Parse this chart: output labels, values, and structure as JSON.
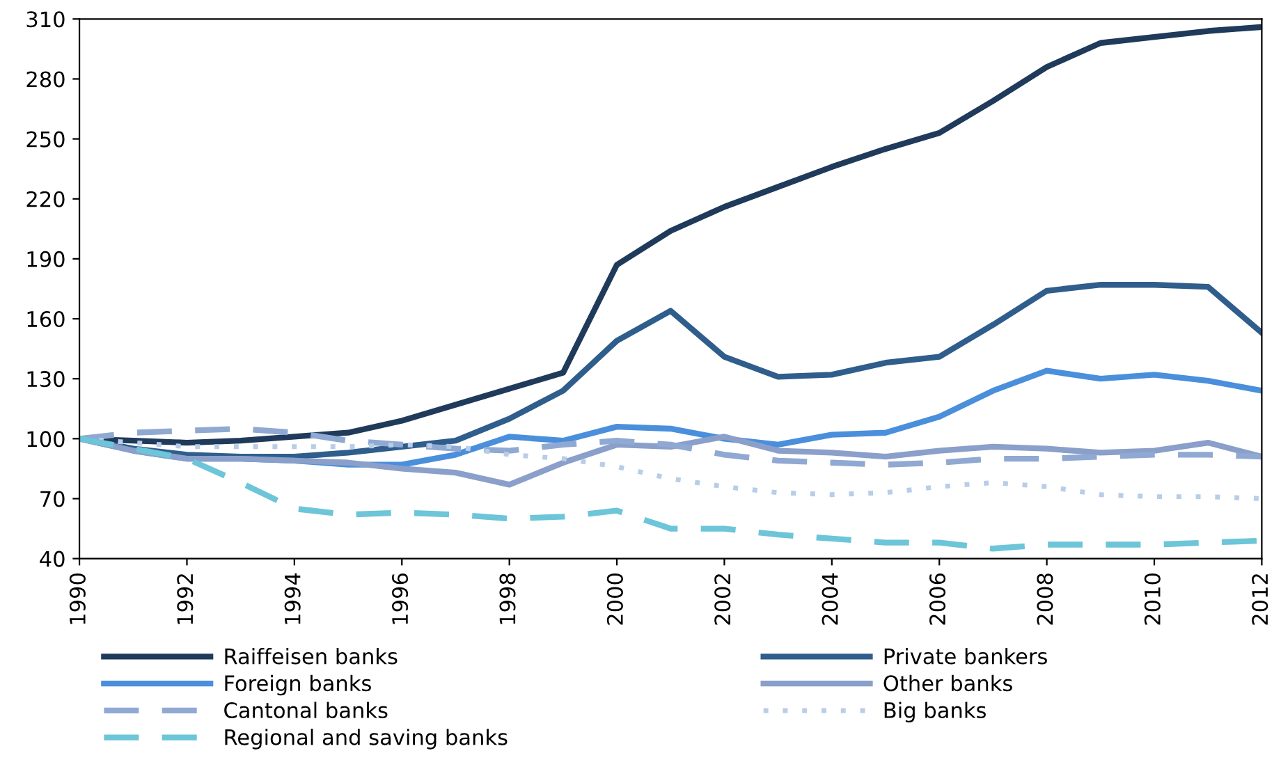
{
  "chart_data": {
    "type": "line",
    "x": [
      1990,
      1991,
      1992,
      1993,
      1994,
      1995,
      1996,
      1997,
      1998,
      1999,
      2000,
      2001,
      2002,
      2003,
      2004,
      2005,
      2006,
      2007,
      2008,
      2009,
      2010,
      2011,
      2012
    ],
    "xlim": [
      1990,
      2012
    ],
    "xticks": [
      1990,
      1992,
      1994,
      1996,
      1998,
      2000,
      2002,
      2004,
      2006,
      2008,
      2010,
      2012
    ],
    "ylim": [
      40,
      310
    ],
    "yticks": [
      40,
      70,
      100,
      130,
      160,
      190,
      220,
      250,
      280,
      310
    ],
    "grid": false,
    "legend": "bottom",
    "marker": "none",
    "series": [
      {
        "name": "Raiffeisen banks",
        "color": "#1f3a5a",
        "line_style": "solid",
        "values": [
          100,
          99,
          98,
          99,
          101,
          103,
          109,
          117,
          125,
          133,
          187,
          204,
          216,
          226,
          236,
          245,
          253,
          269,
          286,
          298,
          301,
          304,
          306
        ]
      },
      {
        "name": "Private bankers",
        "color": "#2f5d8c",
        "line_style": "solid",
        "values": [
          100,
          95,
          92,
          91,
          91,
          93,
          96,
          99,
          110,
          124,
          149,
          164,
          141,
          131,
          132,
          138,
          141,
          157,
          174,
          177,
          177,
          176,
          153
        ]
      },
      {
        "name": "Foreign banks",
        "color": "#4a8fdb",
        "line_style": "solid",
        "values": [
          100,
          94,
          90,
          90,
          89,
          87,
          87,
          92,
          101,
          99,
          106,
          105,
          100,
          97,
          102,
          103,
          111,
          124,
          134,
          130,
          132,
          129,
          124
        ]
      },
      {
        "name": "Other banks",
        "color": "#8a9fc9",
        "line_style": "solid",
        "values": [
          100,
          94,
          90,
          90,
          89,
          88,
          85,
          83,
          77,
          88,
          97,
          96,
          101,
          94,
          93,
          91,
          94,
          96,
          95,
          93,
          94,
          98,
          91
        ]
      },
      {
        "name": "Cantonal banks",
        "color": "#90a9d2",
        "line_style": "dashed",
        "values": [
          100,
          103,
          104,
          105,
          103,
          99,
          97,
          95,
          94,
          97,
          99,
          97,
          92,
          89,
          88,
          87,
          88,
          90,
          90,
          91,
          92,
          92,
          91
        ]
      },
      {
        "name": "Big banks",
        "color": "#b8cde8",
        "line_style": "dotted",
        "values": [
          100,
          98,
          96,
          96,
          96,
          96,
          97,
          96,
          92,
          90,
          86,
          80,
          76,
          73,
          72,
          73,
          76,
          78,
          76,
          72,
          71,
          71,
          70
        ]
      },
      {
        "name": "Regional and saving banks",
        "color": "#6cc5d8",
        "line_style": "dashed",
        "values": [
          100,
          95,
          90,
          78,
          65,
          62,
          63,
          62,
          60,
          61,
          64,
          55,
          55,
          52,
          50,
          48,
          48,
          45,
          47,
          47,
          47,
          48,
          49
        ]
      }
    ]
  }
}
